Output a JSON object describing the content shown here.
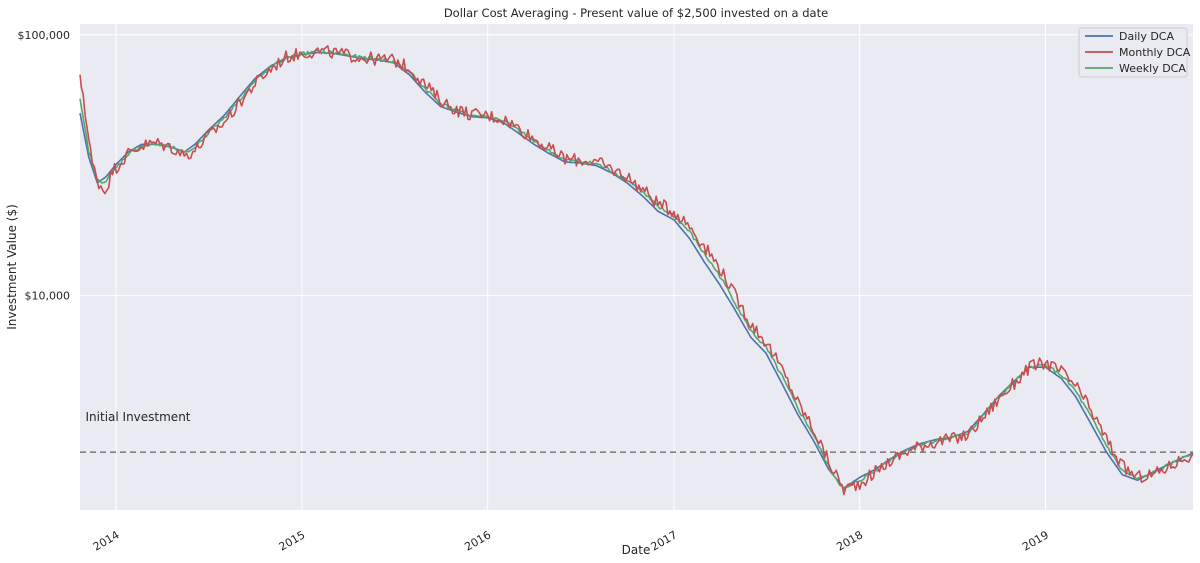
{
  "chart_data": {
    "type": "line",
    "title": "Dollar Cost Averaging - Present value of $2,500 invested on a date",
    "xlabel": "Date",
    "ylabel": "Investment Value ($)",
    "yscale": "log",
    "grid": true,
    "legend_position": "top-right",
    "xlim": [
      "2013-10-22",
      "2019-10-18"
    ],
    "ylim": [
      1500,
      110000
    ],
    "xticks": [
      {
        "date": "2014-01-01",
        "label": "2014"
      },
      {
        "date": "2015-01-01",
        "label": "2015"
      },
      {
        "date": "2016-01-01",
        "label": "2016"
      },
      {
        "date": "2017-01-01",
        "label": "2017"
      },
      {
        "date": "2018-01-01",
        "label": "2018"
      },
      {
        "date": "2019-01-01",
        "label": "2019"
      }
    ],
    "yticks": [
      {
        "value": 10000,
        "label": "$10,000"
      },
      {
        "value": 100000,
        "label": "$100,000"
      }
    ],
    "reference_line": {
      "value": 2500,
      "style": "dashed",
      "color": "#808080"
    },
    "annotation": {
      "text": "Initial Investment",
      "date": "2013-10-25",
      "value": 3300
    },
    "series": [
      {
        "name": "Daily DCA",
        "color": "#4c72b0",
        "points": [
          [
            "2013-10-22",
            50000
          ],
          [
            "2013-11-08",
            34000
          ],
          [
            "2013-11-25",
            27000
          ],
          [
            "2013-12-12",
            28500
          ],
          [
            "2013-12-30",
            31500
          ],
          [
            "2014-01-25",
            35500
          ],
          [
            "2014-02-20",
            38000
          ],
          [
            "2014-03-20",
            38000
          ],
          [
            "2014-04-20",
            37000
          ],
          [
            "2014-05-15",
            35500
          ],
          [
            "2014-06-05",
            38000
          ],
          [
            "2014-07-01",
            43000
          ],
          [
            "2014-08-01",
            49000
          ],
          [
            "2014-09-01",
            58000
          ],
          [
            "2014-10-01",
            68000
          ],
          [
            "2014-11-01",
            76000
          ],
          [
            "2014-12-01",
            81500
          ],
          [
            "2015-01-01",
            84000
          ],
          [
            "2015-02-01",
            85500
          ],
          [
            "2015-03-01",
            85000
          ],
          [
            "2015-04-01",
            83000
          ],
          [
            "2015-05-01",
            81000
          ],
          [
            "2015-06-01",
            80000
          ],
          [
            "2015-07-01",
            78000
          ],
          [
            "2015-08-01",
            70000
          ],
          [
            "2015-09-01",
            60000
          ],
          [
            "2015-10-01",
            53000
          ],
          [
            "2015-11-01",
            50500
          ],
          [
            "2015-12-01",
            48500
          ],
          [
            "2016-01-01",
            48000
          ],
          [
            "2016-02-01",
            46000
          ],
          [
            "2016-03-01",
            42000
          ],
          [
            "2016-04-01",
            38000
          ],
          [
            "2016-05-01",
            35000
          ],
          [
            "2016-06-01",
            32500
          ],
          [
            "2016-07-01",
            32200
          ],
          [
            "2016-08-01",
            31500
          ],
          [
            "2016-09-01",
            29500
          ],
          [
            "2016-10-01",
            27000
          ],
          [
            "2016-11-01",
            24000
          ],
          [
            "2016-12-01",
            21000
          ],
          [
            "2017-01-01",
            19500
          ],
          [
            "2017-02-01",
            16500
          ],
          [
            "2017-03-01",
            13500
          ],
          [
            "2017-04-01",
            11000
          ],
          [
            "2017-05-01",
            8800
          ],
          [
            "2017-06-01",
            6900
          ],
          [
            "2017-07-01",
            6000
          ],
          [
            "2017-08-01",
            4600
          ],
          [
            "2017-09-01",
            3500
          ],
          [
            "2017-10-01",
            2800
          ],
          [
            "2017-11-01",
            2150
          ],
          [
            "2017-12-01",
            1820
          ],
          [
            "2018-01-01",
            2000
          ],
          [
            "2018-02-01",
            2150
          ],
          [
            "2018-03-01",
            2350
          ],
          [
            "2018-04-01",
            2550
          ],
          [
            "2018-05-01",
            2700
          ],
          [
            "2018-06-01",
            2800
          ],
          [
            "2018-07-01",
            2850
          ],
          [
            "2018-08-01",
            3000
          ],
          [
            "2018-09-01",
            3500
          ],
          [
            "2018-10-01",
            4100
          ],
          [
            "2018-11-01",
            4700
          ],
          [
            "2018-12-01",
            5300
          ],
          [
            "2019-01-01",
            5300
          ],
          [
            "2019-02-01",
            4800
          ],
          [
            "2019-03-01",
            4100
          ],
          [
            "2019-04-01",
            3200
          ],
          [
            "2019-05-01",
            2500
          ],
          [
            "2019-06-01",
            2050
          ],
          [
            "2019-07-01",
            1950
          ],
          [
            "2019-08-01",
            2100
          ],
          [
            "2019-09-01",
            2250
          ],
          [
            "2019-10-01",
            2400
          ],
          [
            "2019-10-18",
            2480
          ]
        ]
      },
      {
        "name": "Monthly DCA",
        "color": "#c44e52",
        "points": [
          [
            "2013-10-22",
            67000
          ],
          [
            "2013-10-28",
            60000
          ],
          [
            "2013-11-05",
            44000
          ],
          [
            "2013-11-15",
            32000
          ],
          [
            "2013-11-28",
            27000
          ],
          [
            "2013-12-10",
            25000
          ],
          [
            "2013-12-25",
            30000
          ],
          [
            "2014-01-25",
            35000
          ],
          [
            "2014-02-20",
            37500
          ],
          [
            "2014-03-20",
            38500
          ],
          [
            "2014-04-20",
            37000
          ],
          [
            "2014-05-15",
            34500
          ],
          [
            "2014-06-05",
            36000
          ],
          [
            "2014-07-01",
            41000
          ],
          [
            "2014-08-01",
            46000
          ],
          [
            "2014-09-01",
            55000
          ],
          [
            "2014-10-01",
            65000
          ],
          [
            "2014-11-01",
            74000
          ],
          [
            "2014-12-01",
            82000
          ],
          [
            "2015-01-01",
            85000
          ],
          [
            "2015-02-01",
            86500
          ],
          [
            "2015-03-01",
            85500
          ],
          [
            "2015-04-01",
            83500
          ],
          [
            "2015-05-01",
            81500
          ],
          [
            "2015-06-01",
            80500
          ],
          [
            "2015-07-01",
            80000
          ],
          [
            "2015-08-01",
            74000
          ],
          [
            "2015-09-01",
            64000
          ],
          [
            "2015-10-01",
            56000
          ],
          [
            "2015-11-01",
            51500
          ],
          [
            "2015-12-01",
            49500
          ],
          [
            "2016-01-01",
            49000
          ],
          [
            "2016-02-01",
            47500
          ],
          [
            "2016-03-01",
            44000
          ],
          [
            "2016-04-01",
            40000
          ],
          [
            "2016-05-01",
            36500
          ],
          [
            "2016-06-01",
            33500
          ],
          [
            "2016-07-01",
            33000
          ],
          [
            "2016-08-01",
            32500
          ],
          [
            "2016-09-01",
            30500
          ],
          [
            "2016-10-01",
            28500
          ],
          [
            "2016-11-01",
            25500
          ],
          [
            "2016-12-01",
            22500
          ],
          [
            "2017-01-01",
            21000
          ],
          [
            "2017-02-01",
            18500
          ],
          [
            "2017-03-01",
            15500
          ],
          [
            "2017-04-01",
            12800
          ],
          [
            "2017-05-01",
            10000
          ],
          [
            "2017-06-01",
            7800
          ],
          [
            "2017-07-01",
            6600
          ],
          [
            "2017-08-01",
            5200
          ],
          [
            "2017-09-01",
            3900
          ],
          [
            "2017-10-01",
            3100
          ],
          [
            "2017-11-01",
            2300
          ],
          [
            "2017-12-01",
            1800
          ],
          [
            "2018-01-01",
            1900
          ],
          [
            "2018-02-01",
            2100
          ],
          [
            "2018-03-01",
            2300
          ],
          [
            "2018-04-01",
            2500
          ],
          [
            "2018-05-01",
            2650
          ],
          [
            "2018-06-01",
            2750
          ],
          [
            "2018-07-01",
            2800
          ],
          [
            "2018-08-01",
            2900
          ],
          [
            "2018-09-01",
            3400
          ],
          [
            "2018-10-01",
            4000
          ],
          [
            "2018-11-01",
            4600
          ],
          [
            "2018-12-01",
            5300
          ],
          [
            "2019-01-01",
            5500
          ],
          [
            "2019-02-01",
            5100
          ],
          [
            "2019-03-01",
            4500
          ],
          [
            "2019-04-01",
            3600
          ],
          [
            "2019-05-01",
            2800
          ],
          [
            "2019-06-01",
            2200
          ],
          [
            "2019-07-01",
            2000
          ],
          [
            "2019-08-01",
            2050
          ],
          [
            "2019-09-01",
            2200
          ],
          [
            "2019-10-01",
            2380
          ],
          [
            "2019-10-18",
            2470
          ]
        ]
      },
      {
        "name": "Weekly DCA",
        "color": "#55a868",
        "points": [
          [
            "2013-10-22",
            56000
          ],
          [
            "2013-11-08",
            36000
          ],
          [
            "2013-11-25",
            27500
          ],
          [
            "2013-12-12",
            27500
          ],
          [
            "2013-12-30",
            30500
          ],
          [
            "2014-01-25",
            35000
          ],
          [
            "2014-02-20",
            37500
          ],
          [
            "2014-03-20",
            38000
          ],
          [
            "2014-04-20",
            37000
          ],
          [
            "2014-05-15",
            35000
          ],
          [
            "2014-06-05",
            37000
          ],
          [
            "2014-07-01",
            42000
          ],
          [
            "2014-08-01",
            48000
          ],
          [
            "2014-09-01",
            56500
          ],
          [
            "2014-10-01",
            66500
          ],
          [
            "2014-11-01",
            75000
          ],
          [
            "2014-12-01",
            81500
          ],
          [
            "2015-01-01",
            84500
          ],
          [
            "2015-02-01",
            86000
          ],
          [
            "2015-03-01",
            85500
          ],
          [
            "2015-04-01",
            83500
          ],
          [
            "2015-05-01",
            81500
          ],
          [
            "2015-06-01",
            80500
          ],
          [
            "2015-07-01",
            79000
          ],
          [
            "2015-08-01",
            72000
          ],
          [
            "2015-09-01",
            62000
          ],
          [
            "2015-10-01",
            54500
          ],
          [
            "2015-11-01",
            51000
          ],
          [
            "2015-12-01",
            49000
          ],
          [
            "2016-01-01",
            48500
          ],
          [
            "2016-02-01",
            46800
          ],
          [
            "2016-03-01",
            43000
          ],
          [
            "2016-04-01",
            39000
          ],
          [
            "2016-05-01",
            35800
          ],
          [
            "2016-06-01",
            33000
          ],
          [
            "2016-07-01",
            32600
          ],
          [
            "2016-08-01",
            32000
          ],
          [
            "2016-09-01",
            30000
          ],
          [
            "2016-10-01",
            27800
          ],
          [
            "2016-11-01",
            24800
          ],
          [
            "2016-12-01",
            21800
          ],
          [
            "2017-01-01",
            20200
          ],
          [
            "2017-02-01",
            17500
          ],
          [
            "2017-03-01",
            14500
          ],
          [
            "2017-04-01",
            11900
          ],
          [
            "2017-05-01",
            9400
          ],
          [
            "2017-06-01",
            7300
          ],
          [
            "2017-07-01",
            6300
          ],
          [
            "2017-08-01",
            4900
          ],
          [
            "2017-09-01",
            3700
          ],
          [
            "2017-10-01",
            2950
          ],
          [
            "2017-11-01",
            2200
          ],
          [
            "2017-12-01",
            1790
          ],
          [
            "2018-01-01",
            1950
          ],
          [
            "2018-02-01",
            2120
          ],
          [
            "2018-03-01",
            2330
          ],
          [
            "2018-04-01",
            2530
          ],
          [
            "2018-05-01",
            2680
          ],
          [
            "2018-06-01",
            2780
          ],
          [
            "2018-07-01",
            2830
          ],
          [
            "2018-08-01",
            2950
          ],
          [
            "2018-09-01",
            3450
          ],
          [
            "2018-10-01",
            4050
          ],
          [
            "2018-11-01",
            4650
          ],
          [
            "2018-12-01",
            5300
          ],
          [
            "2019-01-01",
            5400
          ],
          [
            "2019-02-01",
            4950
          ],
          [
            "2019-03-01",
            4300
          ],
          [
            "2019-04-01",
            3400
          ],
          [
            "2019-05-01",
            2650
          ],
          [
            "2019-06-01",
            2120
          ],
          [
            "2019-07-01",
            1970
          ],
          [
            "2019-08-01",
            2080
          ],
          [
            "2019-09-01",
            2230
          ],
          [
            "2019-10-01",
            2390
          ],
          [
            "2019-10-18",
            2475
          ]
        ]
      }
    ]
  }
}
